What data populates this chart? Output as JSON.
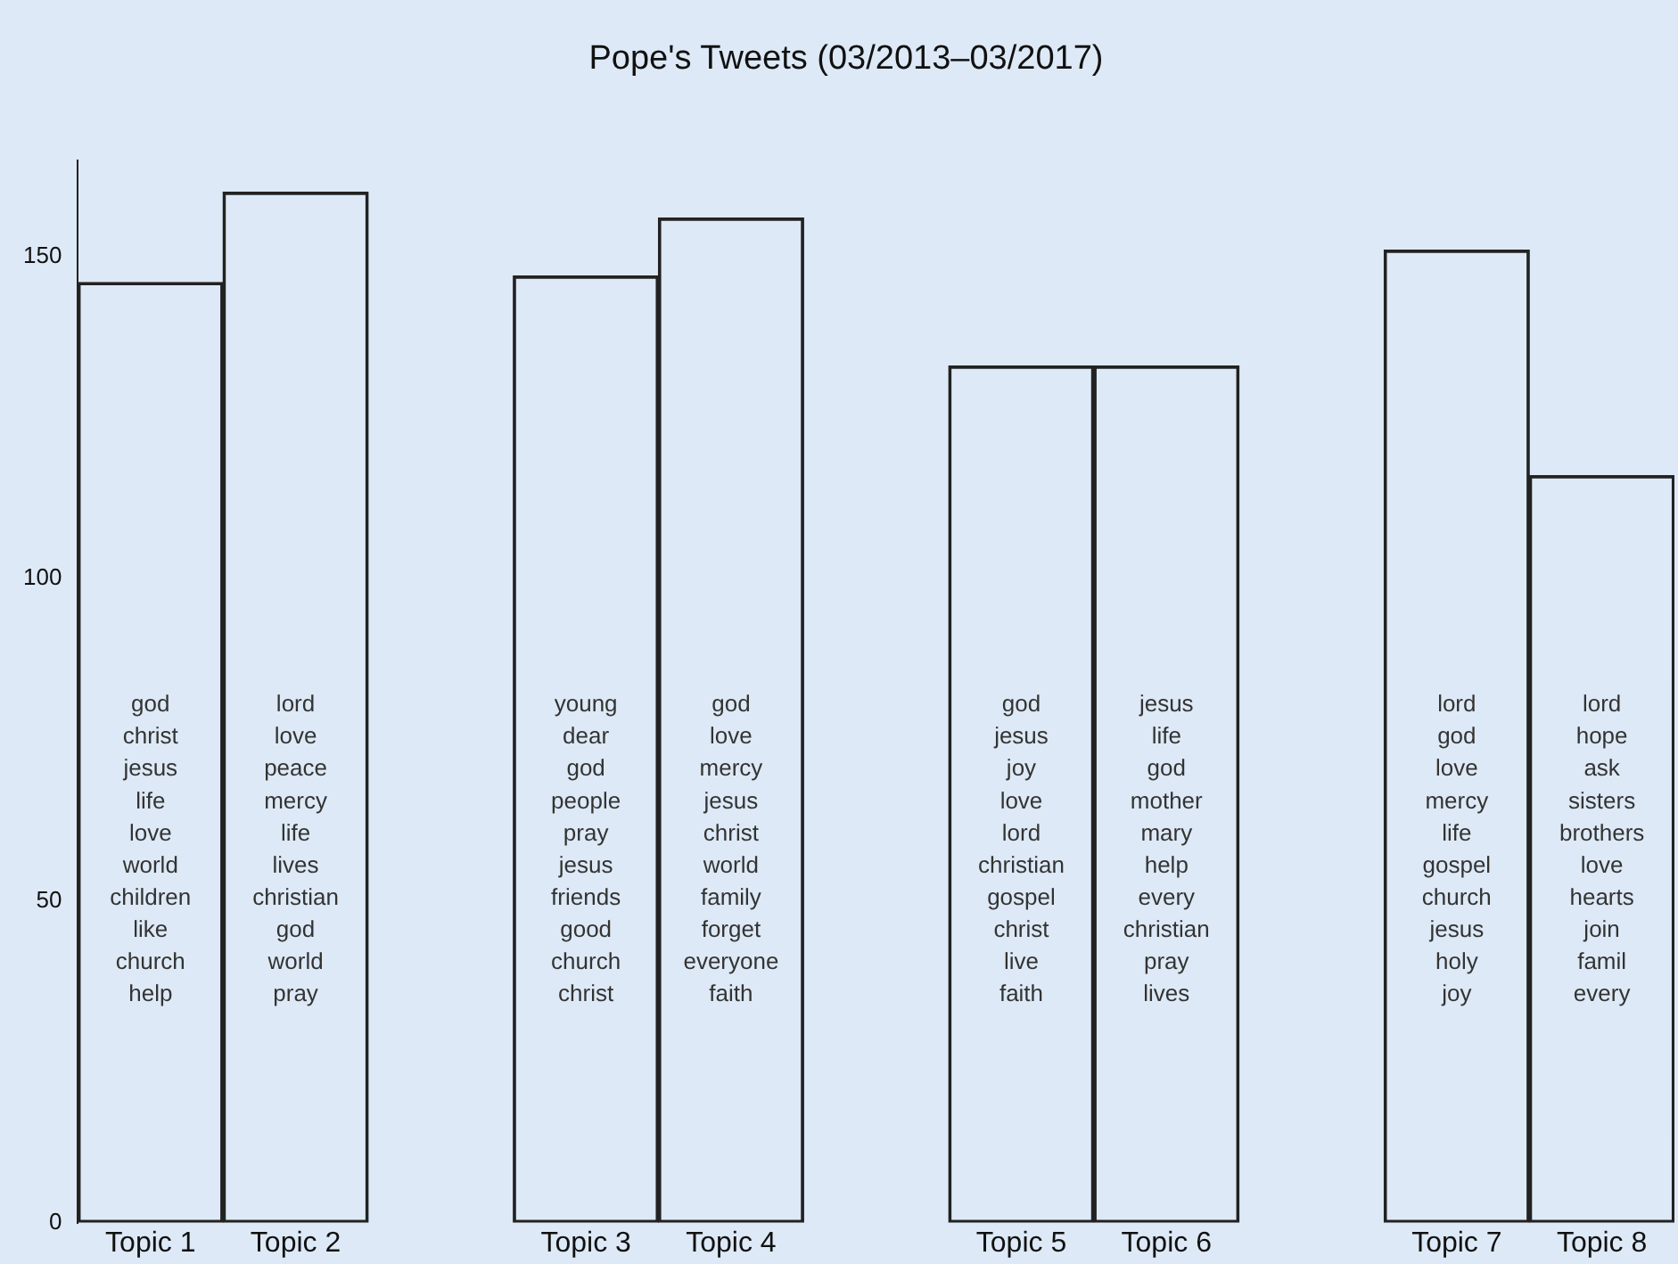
{
  "chart_data": {
    "type": "bar",
    "title": "Pope's Tweets (03/2013–03/2017)",
    "categories": [
      "Topic 1",
      "Topic 2",
      null,
      "Topic 3",
      "Topic 4",
      null,
      "Topic 5",
      "Topic 6",
      null,
      "Topic 7",
      "Topic 8"
    ],
    "values": [
      146,
      160,
      null,
      147,
      156,
      null,
      133,
      133,
      null,
      151,
      116
    ],
    "color": "#222222",
    "ylim": [
      0,
      165
    ],
    "yticks": [
      0,
      50,
      100,
      150
    ],
    "grid": false,
    "legend": false,
    "annotations": [
      "god",
      "christ",
      "jesus",
      "life",
      "love",
      "world",
      "children",
      "like",
      "church",
      "help",
      "lord",
      "love",
      "peace",
      "mercy",
      "life",
      "lives",
      "christian",
      "god",
      "world",
      "pray",
      "young",
      "dear",
      "god",
      "people",
      "pray",
      "jesus",
      "friends",
      "good",
      "church",
      "christ",
      "god",
      "love",
      "mercy",
      "jesus",
      "christ",
      "world",
      "family",
      "forget",
      "everyone",
      "faith",
      "god",
      "jesus",
      "joy",
      "love",
      "lord",
      "christian",
      "gospel",
      "christ",
      "live",
      "faith",
      "jesus",
      "life",
      "god",
      "mother",
      "mary",
      "help",
      "every",
      "christian",
      "pray",
      "lives",
      "lord",
      "god",
      "love",
      "mercy",
      "life",
      "gospel",
      "church",
      "jesus",
      "holy",
      "joy",
      "lord",
      "hope",
      "ask",
      "sisters",
      "brothers",
      "love",
      "hearts",
      "join",
      "famil",
      "every"
    ]
  }
}
